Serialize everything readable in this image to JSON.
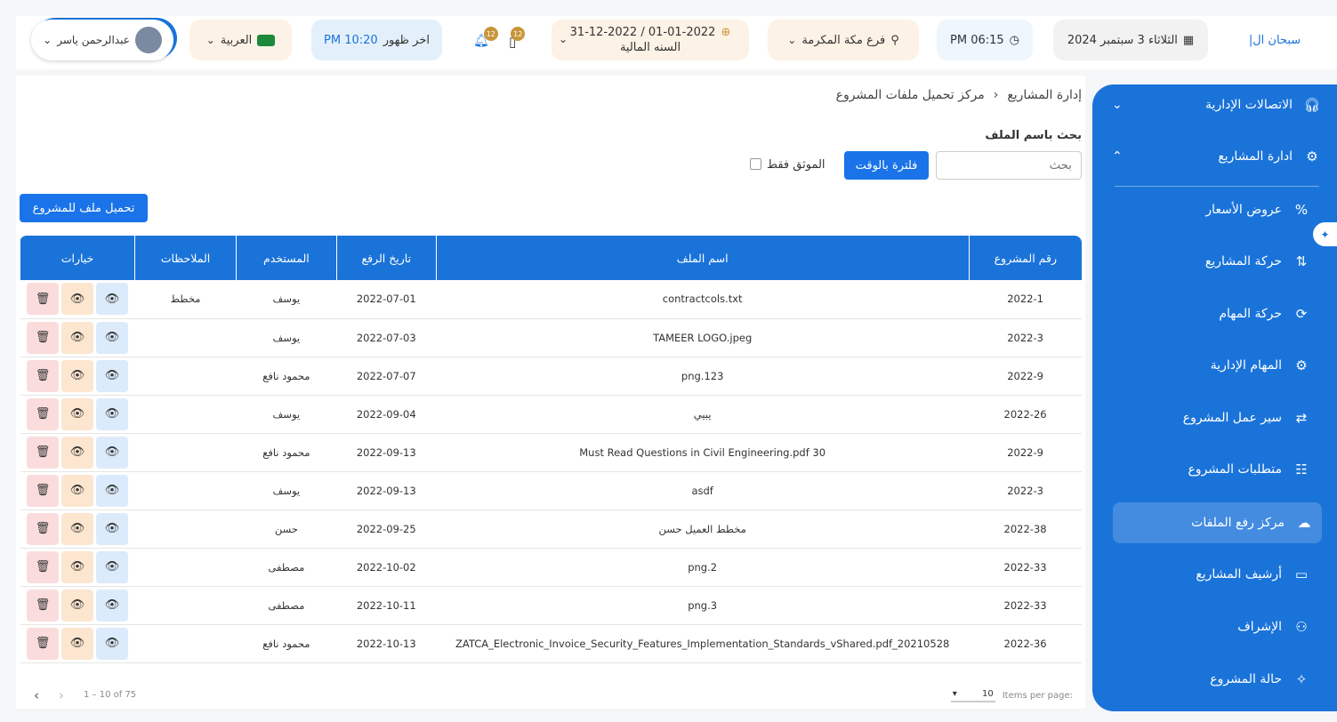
{
  "topbar": {
    "marquee": "سبحان ال|",
    "date": "الثلاثاء 3 سبتمبر 2024",
    "time": "PM 06:15",
    "branch": "فرع مكة المكرمة",
    "fiscal_range": "01-01-2022 / 31-12-2022",
    "fiscal_label": "السنه المالية",
    "messages_count": "12",
    "notifications_count": "12",
    "prayer_label": "اخر ظهور",
    "prayer_time": "PM 10:20",
    "language": "العربية",
    "user_name": "عبدالرحمن ياسر"
  },
  "sidebar": {
    "items": [
      {
        "label": "الاتصالات الإدارية",
        "icon": "headset-icon",
        "arrow": "⌄"
      },
      {
        "label": "ادارة المشاريع",
        "icon": "gear-icon",
        "arrow": "⌃"
      },
      {
        "label": "عروض الأسعار",
        "icon": "percent-icon"
      },
      {
        "label": "حركة المشاريع",
        "icon": "route-icon"
      },
      {
        "label": "حركة المهام",
        "icon": "task-cycle-icon"
      },
      {
        "label": "المهام الإدارية",
        "icon": "admin-task-icon"
      },
      {
        "label": "سير عمل المشروع",
        "icon": "arrows-swap-icon"
      },
      {
        "label": "متطلبات المشروع",
        "icon": "sliders-icon"
      },
      {
        "label": "مركز رفع الملفات",
        "icon": "cloud-upload-icon",
        "active": true
      },
      {
        "label": "أرشيف المشاريع",
        "icon": "archive-icon"
      },
      {
        "label": "الإشراف",
        "icon": "supervision-icon"
      },
      {
        "label": "حالة المشروع",
        "icon": "bulb-icon"
      }
    ]
  },
  "breadcrumb": {
    "root": "إدارة المشاريع",
    "current": "مركز تحميل ملفات المشروع"
  },
  "search": {
    "label": "بحث باسم الملف",
    "placeholder": "بحث",
    "filter_button": "فلترة بالوقت",
    "verified_only": "الموثق فقط"
  },
  "upload_button": "تحميل ملف للمشروع",
  "table": {
    "columns": [
      "رقم المشروع",
      "اسم الملف",
      "تاريخ الرفع",
      "المستخدم",
      "الملاحظات",
      "خيارات"
    ],
    "rows": [
      [
        "2022-1",
        "contractcols.txt",
        "2022-07-01",
        "يوسف",
        "مخطط"
      ],
      [
        "2022-3",
        "TAMEER LOGO.jpeg",
        "2022-07-03",
        "يوسف",
        ""
      ],
      [
        "2022-9",
        "png.123",
        "2022-07-07",
        "محمود نافع",
        ""
      ],
      [
        "2022-26",
        "يبيي",
        "2022-09-04",
        "يوسف",
        ""
      ],
      [
        "2022-9",
        "Must Read Questions in Civil Engineering.pdf 30",
        "2022-09-13",
        "محمود نافع",
        ""
      ],
      [
        "2022-3",
        "asdf",
        "2022-09-13",
        "يوسف",
        ""
      ],
      [
        "2022-38",
        "مخطط العميل حسن",
        "2022-09-25",
        "حسن",
        ""
      ],
      [
        "2022-33",
        "png.2",
        "2022-10-02",
        "مصطفى",
        ""
      ],
      [
        "2022-33",
        "png.3",
        "2022-10-11",
        "مصطفى",
        ""
      ],
      [
        "2022-36",
        "ZATCA_Electronic_Invoice_Security_Features_Implementation_Standards_vShared.pdf_20210528",
        "2022-10-13",
        "محمود نافع",
        ""
      ]
    ]
  },
  "pagination": {
    "items_per_page_label": "Items per page:",
    "page_size": "10",
    "range": "1 – 10 of 75"
  },
  "colors": {
    "primary": "#1a73d9",
    "active_item": "#3d8ae0"
  }
}
